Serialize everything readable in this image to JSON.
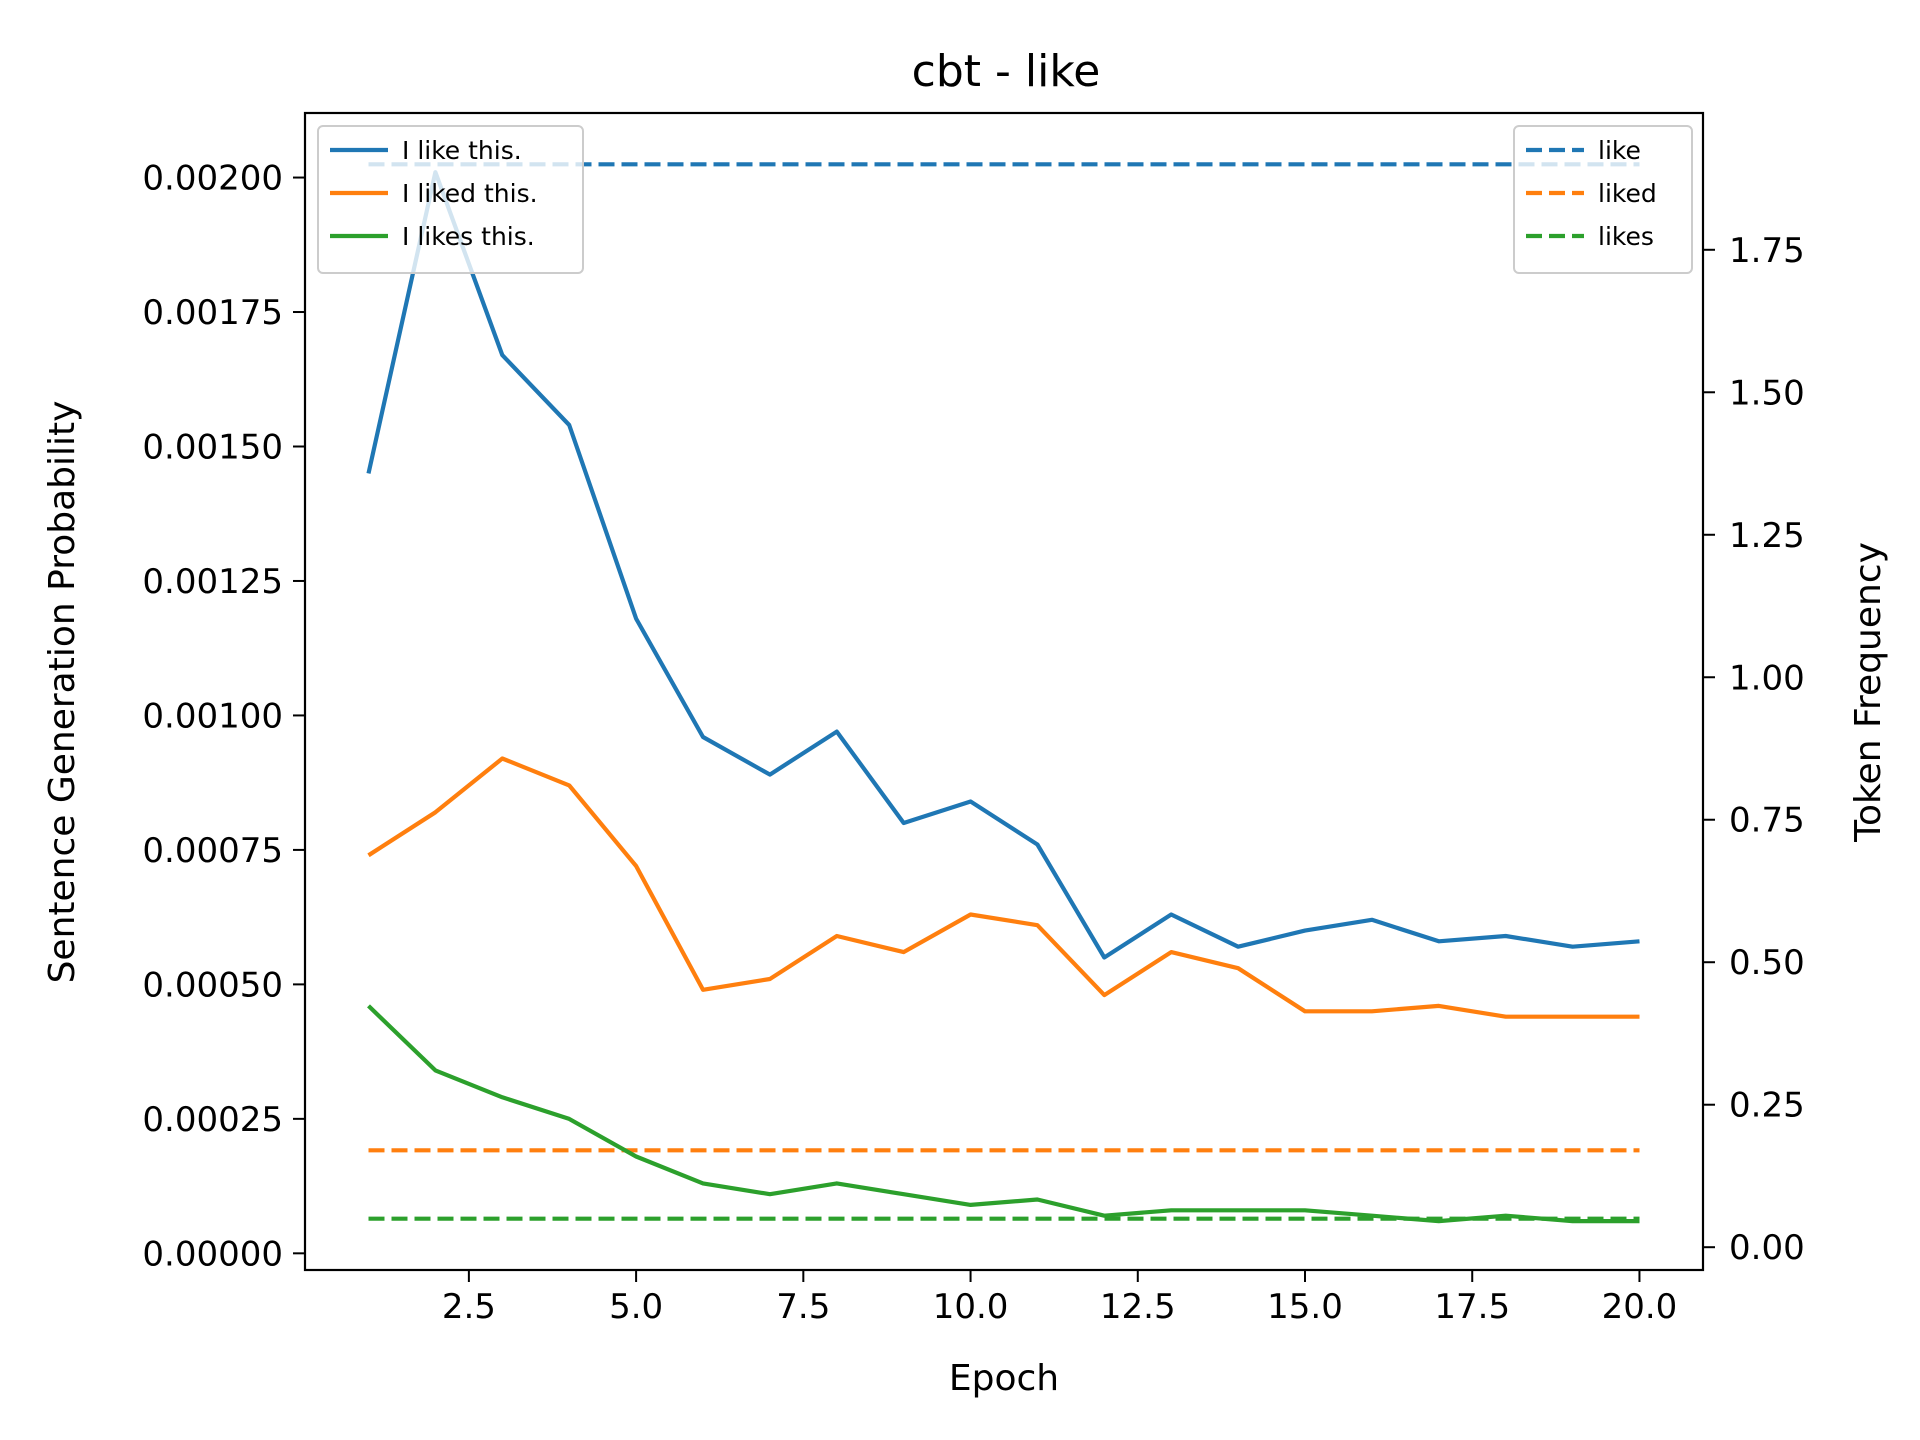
{
  "chart_data": {
    "type": "line",
    "title": "cbt - like",
    "xlabel": "Epoch",
    "ylabel_left": "Sentence Generation Probability",
    "ylabel_right": "Token Frequency",
    "x": [
      1,
      2,
      3,
      4,
      5,
      6,
      7,
      8,
      9,
      10,
      11,
      12,
      13,
      14,
      15,
      16,
      17,
      18,
      19,
      20
    ],
    "xlim": [
      0.05,
      20.95
    ],
    "xticks": [
      "2.5",
      "5.0",
      "7.5",
      "10.0",
      "12.5",
      "15.0",
      "17.5",
      "20.0"
    ],
    "ylim_left": [
      -3.1e-05,
      0.00212
    ],
    "yticks_left": [
      "0.00000",
      "0.00025",
      "0.00050",
      "0.00075",
      "0.00100",
      "0.00125",
      "0.00150",
      "0.00175",
      "0.00200"
    ],
    "ylim_right": [
      -0.04,
      1.99
    ],
    "yticks_right": [
      "0.00",
      "0.25",
      "0.50",
      "0.75",
      "1.00",
      "1.25",
      "1.50",
      "1.75"
    ],
    "grid": false,
    "series_left": [
      {
        "name": "I like this.",
        "color": "#1f77b4",
        "style": "solid",
        "values": [
          0.00145,
          0.00201,
          0.00167,
          0.00154,
          0.00118,
          0.00096,
          0.00089,
          0.00097,
          0.0008,
          0.00084,
          0.00076,
          0.00055,
          0.00063,
          0.00057,
          0.0006,
          0.00062,
          0.00058,
          0.00059,
          0.00057,
          0.00058
        ]
      },
      {
        "name": "I liked this.",
        "color": "#ff7f0e",
        "style": "solid",
        "values": [
          0.00074,
          0.00082,
          0.00092,
          0.00087,
          0.00072,
          0.00049,
          0.00051,
          0.00059,
          0.00056,
          0.00063,
          0.00061,
          0.00048,
          0.00056,
          0.00053,
          0.00045,
          0.00045,
          0.00046,
          0.00044,
          0.00044,
          0.00044
        ]
      },
      {
        "name": "I likes this.",
        "color": "#2ca02c",
        "style": "solid",
        "values": [
          0.00046,
          0.00034,
          0.00029,
          0.00025,
          0.00018,
          0.00013,
          0.00011,
          0.00013,
          0.00011,
          9e-05,
          0.0001,
          7e-05,
          8e-05,
          8e-05,
          8e-05,
          7e-05,
          6e-05,
          7e-05,
          6e-05,
          6e-05
        ]
      }
    ],
    "series_right": [
      {
        "name": "like",
        "color": "#1f77b4",
        "style": "dashed",
        "values": [
          1.9,
          1.9,
          1.9,
          1.9,
          1.9,
          1.9,
          1.9,
          1.9,
          1.9,
          1.9,
          1.9,
          1.9,
          1.9,
          1.9,
          1.9,
          1.9,
          1.9,
          1.9,
          1.9,
          1.9
        ]
      },
      {
        "name": "liked",
        "color": "#ff7f0e",
        "style": "dashed",
        "values": [
          0.17,
          0.17,
          0.17,
          0.17,
          0.17,
          0.17,
          0.17,
          0.17,
          0.17,
          0.17,
          0.17,
          0.17,
          0.17,
          0.17,
          0.17,
          0.17,
          0.17,
          0.17,
          0.17,
          0.17
        ]
      },
      {
        "name": "likes",
        "color": "#2ca02c",
        "style": "dashed",
        "values": [
          0.05,
          0.05,
          0.05,
          0.05,
          0.05,
          0.05,
          0.05,
          0.05,
          0.05,
          0.05,
          0.05,
          0.05,
          0.05,
          0.05,
          0.05,
          0.05,
          0.05,
          0.05,
          0.05,
          0.05
        ]
      }
    ],
    "legend_left_placement": "top-left",
    "legend_right_placement": "top-right"
  }
}
